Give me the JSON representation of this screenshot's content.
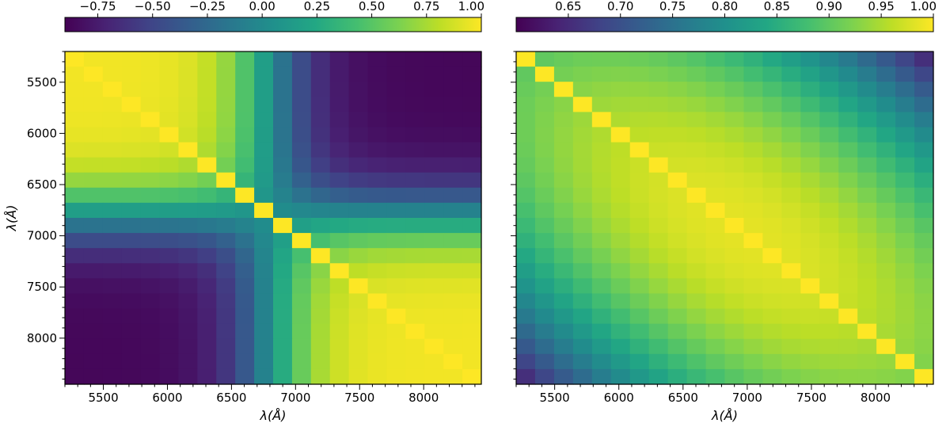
{
  "chart_data": [
    {
      "type": "heatmap",
      "title": "",
      "xlabel": "λ(Å)",
      "ylabel": "λ(Å)",
      "xlim": [
        5200,
        8450
      ],
      "ylim": [
        5200,
        8450
      ],
      "xticks": [
        5500,
        6000,
        6500,
        7000,
        7500,
        8000
      ],
      "yticks": [
        5500,
        6000,
        6500,
        7000,
        7500,
        8000
      ],
      "xtick_labels": [
        "5500",
        "6000",
        "6500",
        "7000",
        "7500",
        "8000"
      ],
      "ytick_labels": [
        "5500",
        "6000",
        "6500",
        "7000",
        "7500",
        "8000"
      ],
      "grid": false,
      "bin_centers": [
        5250,
        5400,
        5550,
        5700,
        5850,
        6000,
        6150,
        6300,
        6450,
        6600,
        6750,
        6900,
        7050,
        7200,
        7350,
        7500,
        7650,
        7800,
        7950,
        8100,
        8250,
        8400
      ],
      "colormap": "viridis",
      "colorbar": {
        "position": "top",
        "vmin": -0.9,
        "vmax": 1.0,
        "ticks": [
          -0.75,
          -0.5,
          -0.25,
          0.0,
          0.25,
          0.5,
          0.75,
          1.0
        ],
        "tick_labels": [
          "−0.75",
          "−0.50",
          "−0.25",
          "0.00",
          "0.25",
          "0.50",
          "0.75",
          "1.00"
        ]
      },
      "description": "correlation matrix: strong positive blocks along the diagonal, anticorrelation between short (~5200-6500 Å) and long (~7200-8450 Å) wavelengths, crossover near 6700-6900 Å"
    },
    {
      "type": "heatmap",
      "title": "",
      "xlabel": "λ(Å)",
      "ylabel": "",
      "xlim": [
        5200,
        8450
      ],
      "ylim": [
        5200,
        8450
      ],
      "xticks": [
        5500,
        6000,
        6500,
        7000,
        7500,
        8000
      ],
      "xtick_labels": [
        "5500",
        "6000",
        "6500",
        "7000",
        "7500",
        "8000"
      ],
      "grid": false,
      "bin_centers": [
        5250,
        5400,
        5550,
        5700,
        5850,
        6000,
        6150,
        6300,
        6450,
        6600,
        6750,
        6900,
        7050,
        7200,
        7350,
        7500,
        7650,
        7800,
        7950,
        8100,
        8250,
        8400
      ],
      "colormap": "viridis",
      "colorbar": {
        "position": "top",
        "vmin": 0.6,
        "vmax": 1.0,
        "ticks": [
          0.65,
          0.7,
          0.75,
          0.8,
          0.85,
          0.9,
          0.95,
          1.0
        ],
        "tick_labels": [
          "0.65",
          "0.70",
          "0.75",
          "0.80",
          "0.85",
          "0.90",
          "0.95",
          "1.00"
        ]
      },
      "description": "correlation matrix: all positive (0.6-1.0), highest near the diagonal, decreasing smoothly toward opposite corners"
    }
  ]
}
